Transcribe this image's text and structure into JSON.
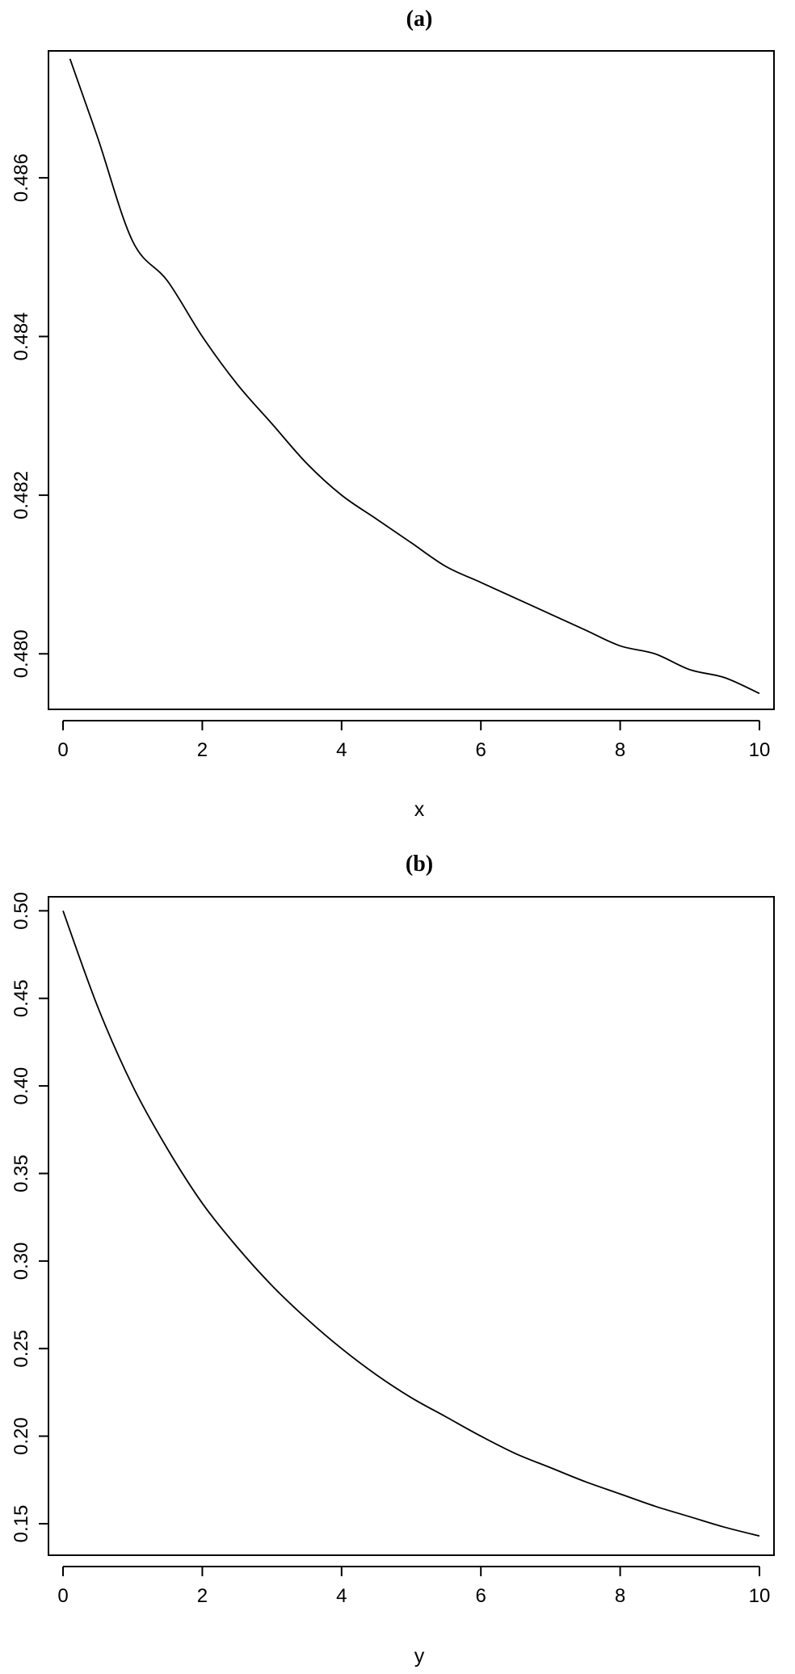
{
  "chart_data": [
    {
      "type": "line",
      "title": "(a)",
      "xlabel": "x",
      "ylabel": "",
      "xlim": [
        0,
        10
      ],
      "ylim": [
        0.4793,
        0.4876
      ],
      "x_ticks": [
        0,
        2,
        4,
        6,
        8,
        10
      ],
      "x_tick_labels": [
        "0",
        "2",
        "4",
        "6",
        "8",
        "10"
      ],
      "y_ticks": [
        0.48,
        0.482,
        0.484,
        0.486
      ],
      "y_tick_labels": [
        "0.480",
        "0.482",
        "0.484",
        "0.486"
      ],
      "grid": false,
      "series": [
        {
          "x": [
            0.1,
            0.5,
            1,
            1.5,
            2,
            2.5,
            3,
            3.5,
            4,
            4.5,
            5,
            5.5,
            6,
            6.5,
            7,
            7.5,
            8,
            8.5,
            9,
            9.5,
            10
          ],
          "values": [
            0.4875,
            0.4865,
            0.4852,
            0.4847,
            0.484,
            0.4834,
            0.4829,
            0.4824,
            0.482,
            0.4817,
            0.4814,
            0.4811,
            0.4809,
            0.4807,
            0.4805,
            0.4803,
            0.4801,
            0.48,
            0.4798,
            0.4797,
            0.4795
          ]
        }
      ]
    },
    {
      "type": "line",
      "title": "(b)",
      "xlabel": "y",
      "ylabel": "",
      "xlim": [
        0,
        10
      ],
      "ylim": [
        0.132,
        0.508
      ],
      "x_ticks": [
        0,
        2,
        4,
        6,
        8,
        10
      ],
      "x_tick_labels": [
        "0",
        "2",
        "4",
        "6",
        "8",
        "10"
      ],
      "y_ticks": [
        0.15,
        0.2,
        0.25,
        0.3,
        0.35,
        0.4,
        0.45,
        0.5
      ],
      "y_tick_labels": [
        "0.15",
        "0.20",
        "0.25",
        "0.30",
        "0.35",
        "0.40",
        "0.45",
        "0.50"
      ],
      "grid": false,
      "series": [
        {
          "x": [
            0,
            0.5,
            1,
            1.5,
            2,
            2.5,
            3,
            3.5,
            4,
            4.5,
            5,
            5.5,
            6,
            6.5,
            7,
            7.5,
            8,
            8.5,
            9,
            9.5,
            10
          ],
          "values": [
            0.5,
            0.445,
            0.4,
            0.364,
            0.333,
            0.308,
            0.286,
            0.267,
            0.25,
            0.235,
            0.222,
            0.211,
            0.2,
            0.19,
            0.182,
            0.174,
            0.167,
            0.16,
            0.154,
            0.148,
            0.143
          ]
        }
      ]
    }
  ]
}
